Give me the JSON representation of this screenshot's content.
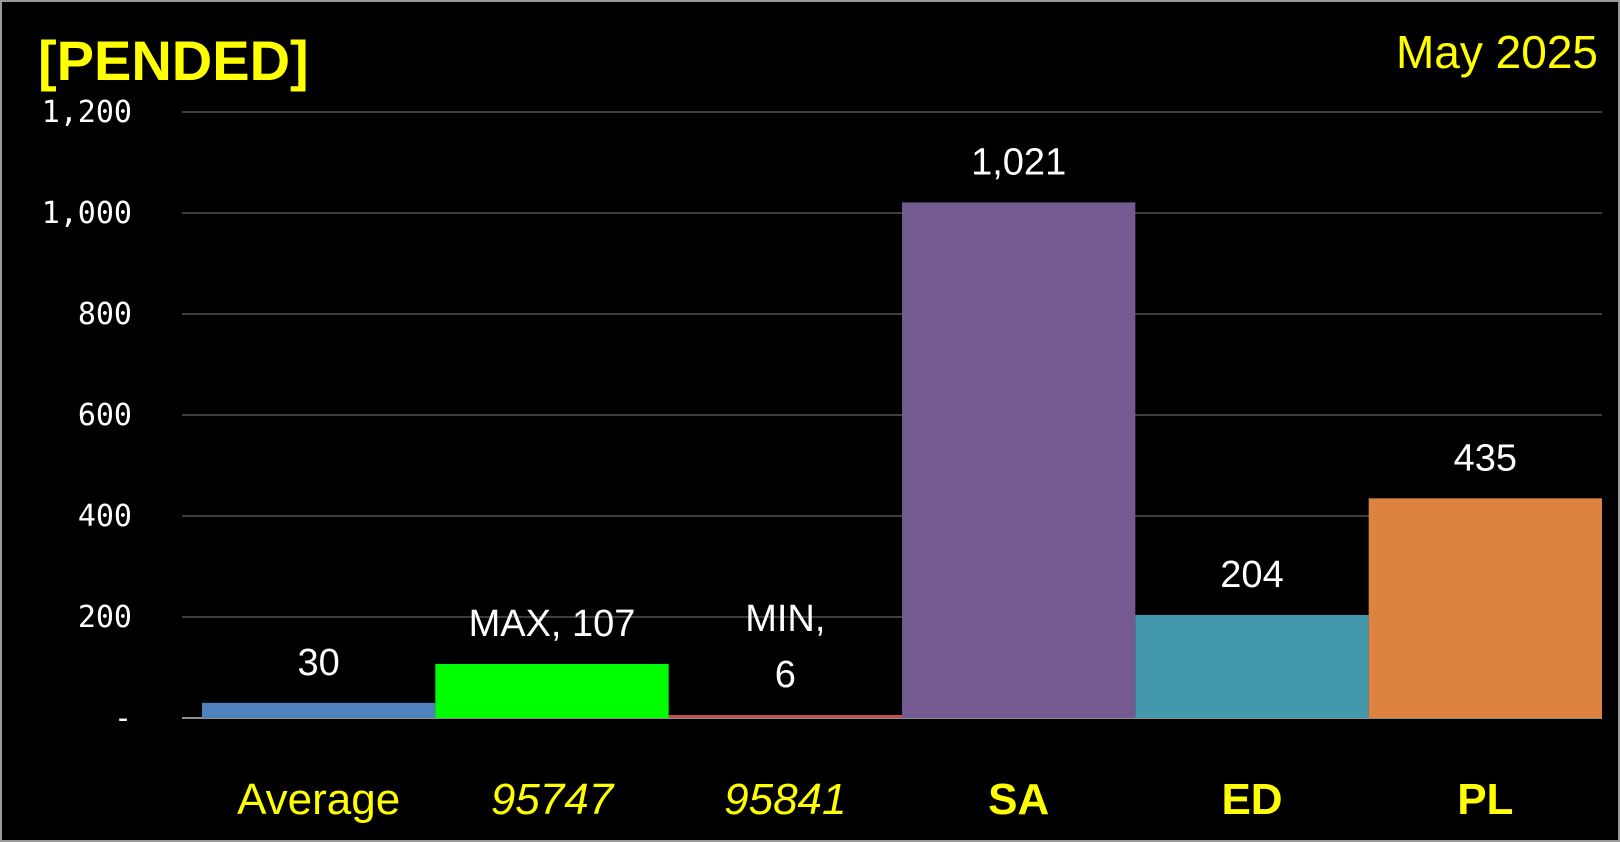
{
  "chart_data": {
    "type": "bar",
    "title": "[PENDED]",
    "subtitle": "May 2025",
    "categories": [
      "Average",
      "95747",
      "95841",
      "SA",
      "ED",
      "PL"
    ],
    "values": [
      30,
      107,
      6,
      1021,
      204,
      435
    ],
    "data_labels": [
      [
        "30"
      ],
      [
        "MAX,  107"
      ],
      [
        "MIN,",
        "6"
      ],
      [
        "1,021"
      ],
      [
        "204"
      ],
      [
        "435"
      ]
    ],
    "bar_colors": [
      "#4f81bd",
      "#00ff00",
      "#c0504d",
      "#735a91",
      "#4398ac",
      "#dc8340"
    ],
    "category_styles": [
      "normal",
      "italic",
      "italic",
      "bold",
      "bold",
      "bold"
    ],
    "yticks": [
      0,
      200,
      400,
      600,
      800,
      1000,
      1200
    ],
    "ytick_labels": [
      "-",
      "200",
      "400",
      "600",
      "800",
      "1,000",
      "1,200"
    ],
    "ylim": [
      0,
      1200
    ],
    "grid": true,
    "legend": false,
    "colors": {
      "background": "#000000",
      "title": "#ffff00",
      "axis_text": "#ffffff"
    }
  }
}
